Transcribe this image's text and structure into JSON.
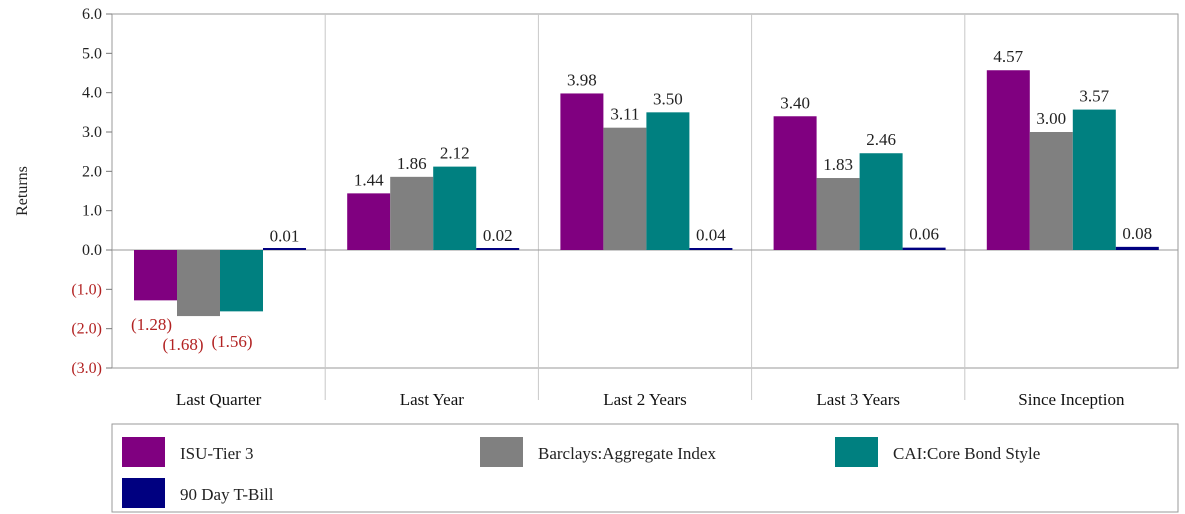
{
  "chart_data": {
    "type": "bar",
    "ylabel": "Returns",
    "ylim": [
      -3.0,
      6.0
    ],
    "yticks": [
      "6.0",
      "5.0",
      "4.0",
      "3.0",
      "2.0",
      "1.0",
      "0.0",
      "(1.0)",
      "(2.0)",
      "(3.0)"
    ],
    "categories": [
      "Last Quarter",
      "Last Year",
      "Last 2 Years",
      "Last 3 Years",
      "Since Inception"
    ],
    "series": [
      {
        "name": "ISU-Tier 3",
        "color": "#800080",
        "values": [
          -1.28,
          1.44,
          3.98,
          3.4,
          4.57
        ],
        "labels": [
          "(1.28)",
          "1.44",
          "3.98",
          "3.40",
          "4.57"
        ]
      },
      {
        "name": "Barclays:Aggregate Index",
        "color": "#808080",
        "values": [
          -1.68,
          1.86,
          3.11,
          1.83,
          3.0
        ],
        "labels": [
          "(1.68)",
          "1.86",
          "3.11",
          "1.83",
          "3.00"
        ]
      },
      {
        "name": "CAI:Core Bond Style",
        "color": "#008080",
        "values": [
          -1.56,
          2.12,
          3.5,
          2.46,
          3.57
        ],
        "labels": [
          "(1.56)",
          "2.12",
          "3.50",
          "2.46",
          "3.57"
        ]
      },
      {
        "name": "90 Day T-Bill",
        "color": "#000080",
        "values": [
          0.01,
          0.02,
          0.04,
          0.06,
          0.08
        ],
        "labels": [
          "0.01",
          "0.02",
          "0.04",
          "0.06",
          "0.08"
        ]
      }
    ],
    "negative_color": "#b22222",
    "grid": "vertical separators between categories",
    "legend_position": "bottom"
  }
}
